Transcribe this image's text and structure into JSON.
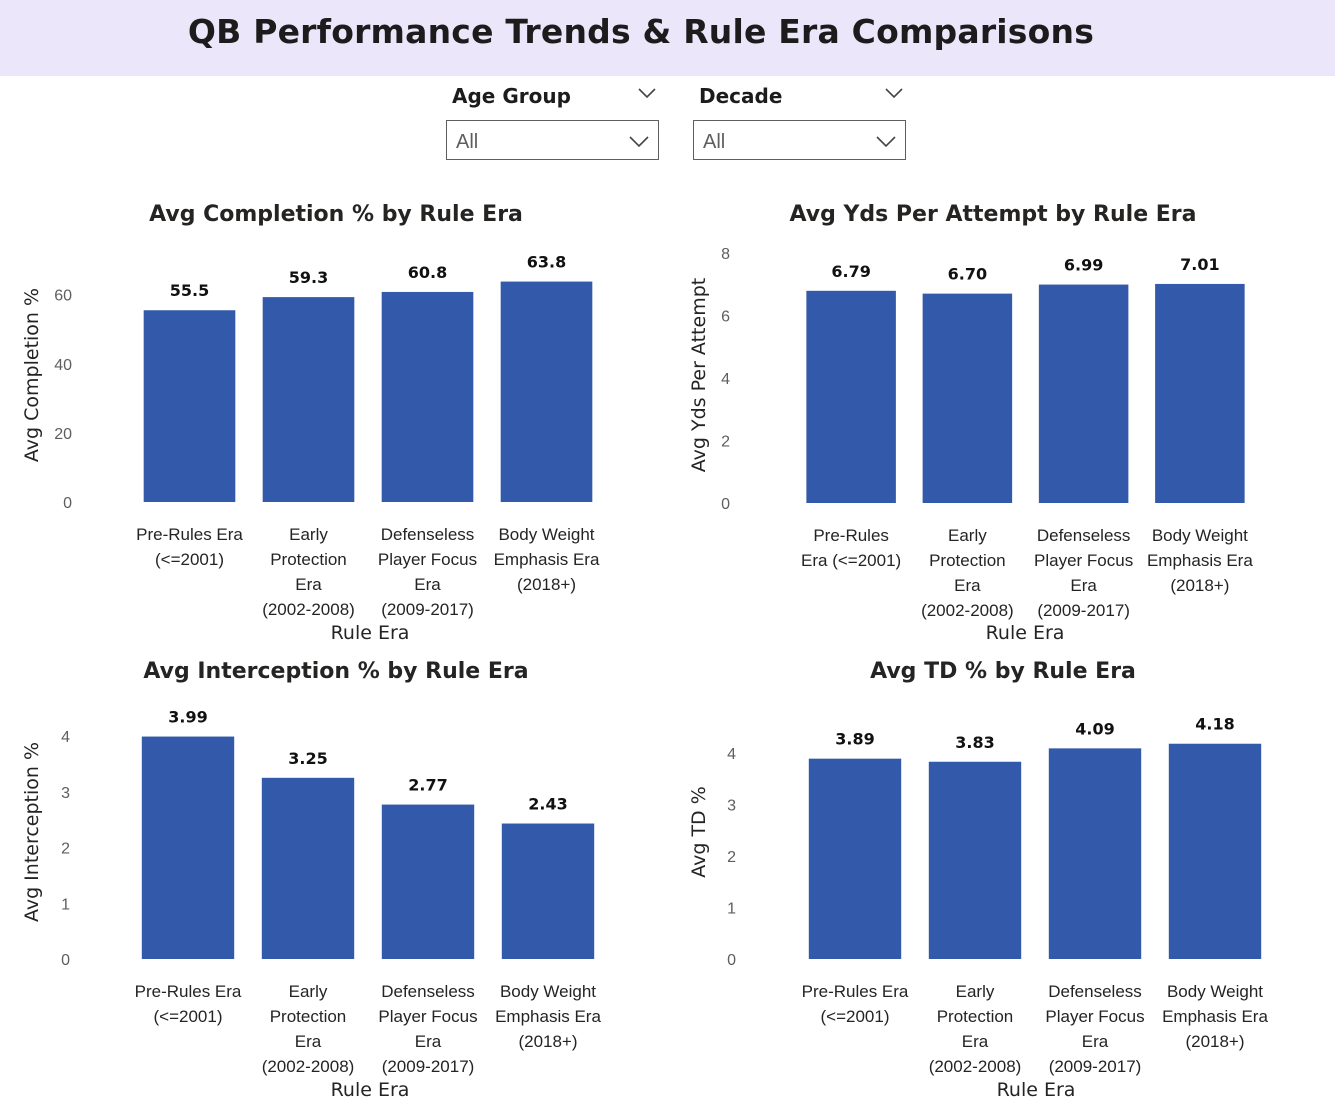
{
  "page": {
    "title": "QB Performance Trends & Rule Era Comparisons"
  },
  "filters": [
    {
      "label": "Age Group",
      "value": "All",
      "icon": "chevron-down-icon"
    },
    {
      "label": "Decade",
      "value": "All",
      "icon": "chevron-down-icon"
    }
  ],
  "colors": {
    "bar": "#3359ab",
    "header_bg": "#ebe6fa"
  },
  "chart_data": [
    {
      "type": "bar",
      "title": "Avg Completion % by Rule Era",
      "xlabel": "Rule Era",
      "ylabel": "Avg Completion %",
      "categories": [
        [
          "Pre-Rules Era",
          "(<=2001)"
        ],
        [
          "Early",
          "Protection",
          "Era",
          "(2002-2008)"
        ],
        [
          "Defenseless",
          "Player Focus",
          "Era",
          "(2009-2017)"
        ],
        [
          "Body Weight",
          "Emphasis Era",
          "(2018+)"
        ]
      ],
      "values": [
        55.5,
        59.3,
        60.8,
        63.8
      ],
      "value_labels": [
        "55.5",
        "59.3",
        "60.8",
        "63.8"
      ],
      "yticks": [
        0,
        20,
        40,
        60
      ],
      "ylim": [
        0,
        60
      ],
      "grid": false,
      "legend": "none"
    },
    {
      "type": "bar",
      "title": "Avg Yds Per Attempt by Rule Era",
      "xlabel": "Rule Era",
      "ylabel": "Avg Yds Per Attempt",
      "categories": [
        [
          "Pre-Rules",
          "Era (<=2001)"
        ],
        [
          "Early",
          "Protection",
          "Era",
          "(2002-2008)"
        ],
        [
          "Defenseless",
          "Player Focus",
          "Era",
          "(2009-2017)"
        ],
        [
          "Body Weight",
          "Emphasis Era",
          "(2018+)"
        ]
      ],
      "values": [
        6.79,
        6.7,
        6.99,
        7.01
      ],
      "value_labels": [
        "6.79",
        "6.70",
        "6.99",
        "7.01"
      ],
      "yticks": [
        0,
        2,
        4,
        6,
        8
      ],
      "ylim": [
        0,
        8
      ],
      "grid": false,
      "legend": "none"
    },
    {
      "type": "bar",
      "title": "Avg Interception % by Rule Era",
      "xlabel": "Rule Era",
      "ylabel": "Avg Interception %",
      "categories": [
        [
          "Pre-Rules Era",
          "(<=2001)"
        ],
        [
          "Early",
          "Protection",
          "Era",
          "(2002-2008)"
        ],
        [
          "Defenseless",
          "Player Focus",
          "Era",
          "(2009-2017)"
        ],
        [
          "Body Weight",
          "Emphasis Era",
          "(2018+)"
        ]
      ],
      "values": [
        3.99,
        3.25,
        2.77,
        2.43
      ],
      "value_labels": [
        "3.99",
        "3.25",
        "2.77",
        "2.43"
      ],
      "yticks": [
        0,
        1,
        2,
        3,
        4
      ],
      "ylim": [
        0,
        4
      ],
      "grid": false,
      "legend": "none"
    },
    {
      "type": "bar",
      "title": "Avg TD % by Rule Era",
      "xlabel": "Rule Era",
      "ylabel": "Avg TD %",
      "categories": [
        [
          "Pre-Rules Era",
          "(<=2001)"
        ],
        [
          "Early",
          "Protection",
          "Era",
          "(2002-2008)"
        ],
        [
          "Defenseless",
          "Player Focus",
          "Era",
          "(2009-2017)"
        ],
        [
          "Body Weight",
          "Emphasis Era",
          "(2018+)"
        ]
      ],
      "values": [
        3.89,
        3.83,
        4.09,
        4.18
      ],
      "value_labels": [
        "3.89",
        "3.83",
        "4.09",
        "4.18"
      ],
      "yticks": [
        0,
        1,
        2,
        3,
        4
      ],
      "ylim": [
        0,
        4
      ],
      "grid": false,
      "legend": "none"
    }
  ]
}
